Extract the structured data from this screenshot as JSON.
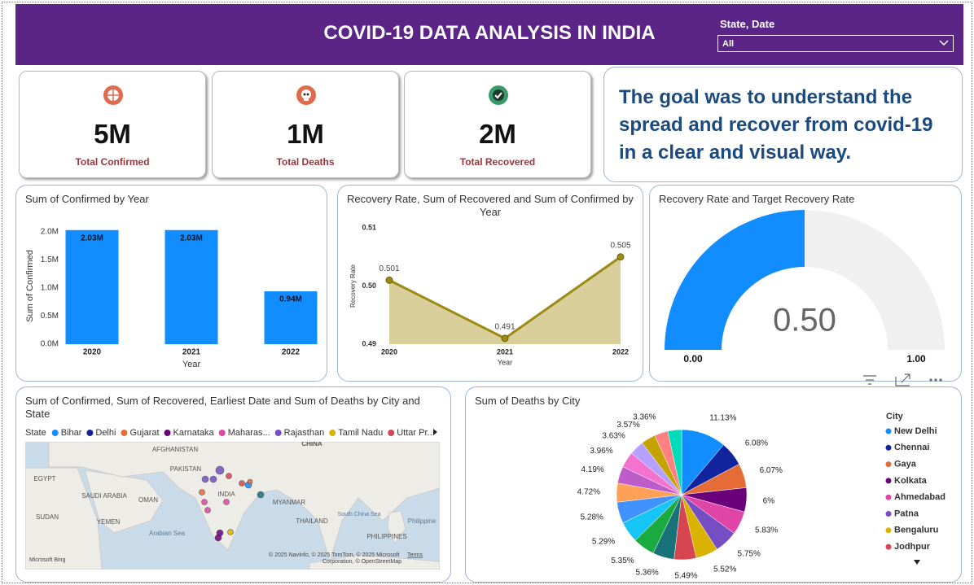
{
  "header": {
    "title": "COVID-19 DATA ANALYSIS IN INDIA",
    "filter_label": "State, Date",
    "filter_value": "All"
  },
  "kpis": [
    {
      "value": "5M",
      "label": "Total Confirmed"
    },
    {
      "value": "1M",
      "label": "Total Deaths"
    },
    {
      "value": "2M",
      "label": "Total Recovered"
    }
  ],
  "goal_text": "The goal was to understand the spread and recover from covid-19 in a clear and visual way.",
  "chart_data": [
    {
      "type": "bar",
      "title": "Sum of Confirmed by Year",
      "x_label": "Year",
      "y_label": "Sum of Confirmed",
      "categories": [
        "2020",
        "2021",
        "2022"
      ],
      "values": [
        2030000,
        2030000,
        940000
      ],
      "value_labels": [
        "2.03M",
        "2.03M",
        "0.94M"
      ],
      "color": "#118DFF",
      "ylim": [
        0,
        2070000
      ],
      "yticks": [
        {
          "value": 0,
          "label": "0.0M"
        },
        {
          "value": 500000,
          "label": "0.5M"
        },
        {
          "value": 1000000,
          "label": "1.0M"
        },
        {
          "value": 1500000,
          "label": "1.5M"
        },
        {
          "value": 2000000,
          "label": "2.0M"
        }
      ]
    },
    {
      "type": "area",
      "title": "Recovery Rate, Sum of Recovered and Sum of Confirmed by Year",
      "x_label": "Year",
      "y_label": "Recovery Rate",
      "categories": [
        "2020",
        "2021",
        "2022"
      ],
      "values": [
        0.501,
        0.491,
        0.505
      ],
      "color": "#9C8A12",
      "fill_color": "#D8CF9A",
      "ylim": [
        0.49,
        0.51
      ],
      "yticks": [
        0.49,
        {
          "value": 0.5,
          "label": "0.50"
        },
        0.51
      ]
    },
    {
      "type": "gauge",
      "title": "Recovery Rate and Target Recovery Rate",
      "values": [
        0.5
      ],
      "value_labels": [
        "0.50"
      ],
      "color": "#118DFF",
      "track_color": "#F0F0F0",
      "ylim": [
        0,
        1
      ],
      "yticks": [
        {
          "value": 0,
          "label": "0.00"
        },
        {
          "value": 1,
          "label": "1.00"
        }
      ]
    },
    {
      "type": "map",
      "title": "Sum of Confirmed, Sum of Recovered, Earliest Date and Sum of Deaths by City and State",
      "legend_title": "State",
      "series": [
        {
          "name": "Bihar",
          "color": "#118DFF"
        },
        {
          "name": "Delhi",
          "color": "#12239E"
        },
        {
          "name": "Gujarat",
          "color": "#E66C37"
        },
        {
          "name": "Karnataka",
          "color": "#6B007B"
        },
        {
          "name": "Maharas...",
          "color": "#E044A7"
        },
        {
          "name": "Rajasthan",
          "color": "#744EC2"
        },
        {
          "name": "Tamil Nadu",
          "color": "#D9B300"
        },
        {
          "name": "Uttar Pr...",
          "color": "#D64550"
        }
      ],
      "labels": [
        "AFGHANISTAN",
        "CHINA",
        "PAKISTAN",
        "EGYPT",
        "SAUDI ARABIA",
        "OMAN",
        "INDIA",
        "MYANMAR",
        "SUDAN",
        "YEMEN",
        "THAILAND",
        "Arabian Sea",
        "South China Sea",
        "Philippine",
        "PHILIPPINES"
      ],
      "attribution": [
        "© 2025 NavInfo, © 2025 TomTom, © 2025 Microsoft",
        "Corporation, © OpenStreetMap"
      ],
      "terms": "Terms",
      "logo": "Microsoft Bing"
    },
    {
      "type": "pie",
      "title": "Sum of Deaths by City",
      "legend_title": "City",
      "categories": [
        "New Delhi",
        "Chennai",
        "Gaya",
        "Kolkata",
        "Ahmedabad",
        "Patna",
        "Bengaluru",
        "Jodhpur",
        null,
        null,
        null,
        null,
        null,
        null,
        null,
        null,
        null,
        null,
        null
      ],
      "values": [
        11.13,
        6.08,
        6.07,
        6,
        5.83,
        5.75,
        5.52,
        5.49,
        5.36,
        5.35,
        5.29,
        5.28,
        4.72,
        4.19,
        3.96,
        3.63,
        3.57,
        3.36,
        3.42
      ],
      "value_labels": [
        "11.13%",
        "6.08%",
        "6.07%",
        "6%",
        "5.83%",
        "5.75%",
        "5.52%",
        "5.49%",
        "5.36%",
        "5.35%",
        "5.29%",
        "5.28%",
        "4.72%",
        "4.19%",
        "3.96%",
        "3.63%",
        "3.57%",
        "3.36%",
        null
      ],
      "colors": [
        "#118DFF",
        "#12239E",
        "#E66C37",
        "#6B007B",
        "#E044A7",
        "#744EC2",
        "#D9B300",
        "#D64550",
        "#197278",
        "#1AAB40",
        "#15C6F4",
        "#4092FF",
        "#FFA058",
        "#BE5DC9",
        "#F472D0",
        "#B5A1FF",
        "#C4A200",
        "#FF8080",
        "#00DBBC"
      ]
    }
  ]
}
